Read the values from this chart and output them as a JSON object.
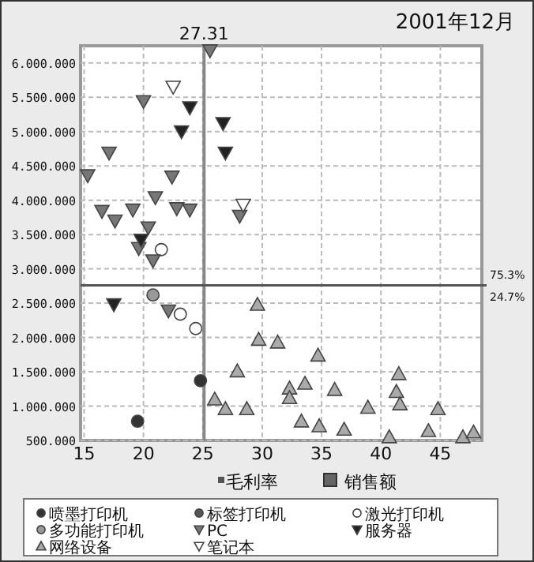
{
  "chart_data": {
    "type": "scatter",
    "title": "2001年12月",
    "xlabel": "毛利率",
    "xlim": [
      14.7,
      48.5
    ],
    "xticks": [
      15,
      20,
      25,
      30,
      35,
      40,
      45
    ],
    "ylim": [
      500000,
      6250000
    ],
    "yticks": [
      {
        "value": 500000,
        "label": "500.000"
      },
      {
        "value": 1000000,
        "label": "1.000.000"
      },
      {
        "value": 1500000,
        "label": "1.500.000"
      },
      {
        "value": 2000000,
        "label": "2.000.000"
      },
      {
        "value": 2500000,
        "label": "2.500.000"
      },
      {
        "value": 3000000,
        "label": "3.000.000"
      },
      {
        "value": 3500000,
        "label": "3.500.000"
      },
      {
        "value": 4000000,
        "label": "4.000.000"
      },
      {
        "value": 4500000,
        "label": "4.500.000"
      },
      {
        "value": 5000000,
        "label": "5.000.000"
      },
      {
        "value": 5500000,
        "label": "5.500.000"
      },
      {
        "value": 6000000,
        "label": "6.000.000"
      }
    ],
    "grid": true,
    "legend": "bottom",
    "ref_lines": [
      {
        "axis": "x",
        "value": 25.1,
        "color": "#888888"
      },
      {
        "axis": "y",
        "value": 2760000,
        "color": "#555555"
      }
    ],
    "annotations": [
      "27.31",
      "75.3%",
      "24.7%",
      "销售额"
    ],
    "series": [
      {
        "name": "喷墨打印机",
        "color": "#333333",
        "marker": "circle",
        "x": [
          24.8,
          19.5
        ],
        "values": [
          1370000,
          780000
        ]
      },
      {
        "name": "标签打印机",
        "color": "#555555",
        "marker": "circle"
      },
      {
        "name": "激光打印机",
        "color": "#ffffff",
        "marker": "circle",
        "x": [
          21.5,
          23.1,
          24.4
        ],
        "values": [
          3280000,
          2340000,
          2130000
        ]
      },
      {
        "name": "多功能打印机",
        "color": "#999999",
        "marker": "circle",
        "x": [
          20.8
        ],
        "values": [
          2620000
        ]
      },
      {
        "name": "PC",
        "color": "#777777",
        "marker": "triangle-down",
        "x": [
          25.6,
          20,
          17.1,
          15.3,
          22.4,
          21,
          16.5,
          17.6,
          19.1,
          22.8,
          23.9,
          28.1,
          20.4,
          19.6,
          20.8,
          22.1
        ],
        "values": [
          6180000,
          5440000,
          4690000,
          4360000,
          4340000,
          4040000,
          3840000,
          3700000,
          3860000,
          3880000,
          3860000,
          3770000,
          3600000,
          3300000,
          3120000,
          2390000
        ]
      },
      {
        "name": "服务器",
        "color": "#222222",
        "marker": "triangle-down",
        "x": [
          23.9,
          26.7,
          23.2,
          26.9,
          19.8,
          17.5
        ],
        "values": [
          5350000,
          5120000,
          5000000,
          4690000,
          3420000,
          2480000
        ]
      },
      {
        "name": "网络设备",
        "color": "#aaaaaa",
        "marker": "triangle",
        "x": [
          29.6,
          29.7,
          27.9,
          26,
          26.9,
          28.7,
          31.3,
          34.7,
          32.3,
          32.3,
          33.6,
          36.1,
          33.3,
          34.8,
          36.9,
          41.5,
          41.3,
          41.6,
          38.9,
          44.8,
          40.7,
          44,
          46.9,
          47.8
        ],
        "values": [
          2480000,
          1970000,
          1510000,
          1100000,
          960000,
          960000,
          1930000,
          1740000,
          1260000,
          1120000,
          1330000,
          1240000,
          780000,
          710000,
          660000,
          1470000,
          1210000,
          1030000,
          980000,
          960000,
          550000,
          640000,
          550000,
          620000
        ]
      },
      {
        "name": "笔记本",
        "color": "#ffffff",
        "marker": "triangle-down",
        "x": [
          22.5,
          28.4
        ],
        "values": [
          5650000,
          3930000
        ]
      }
    ]
  }
}
